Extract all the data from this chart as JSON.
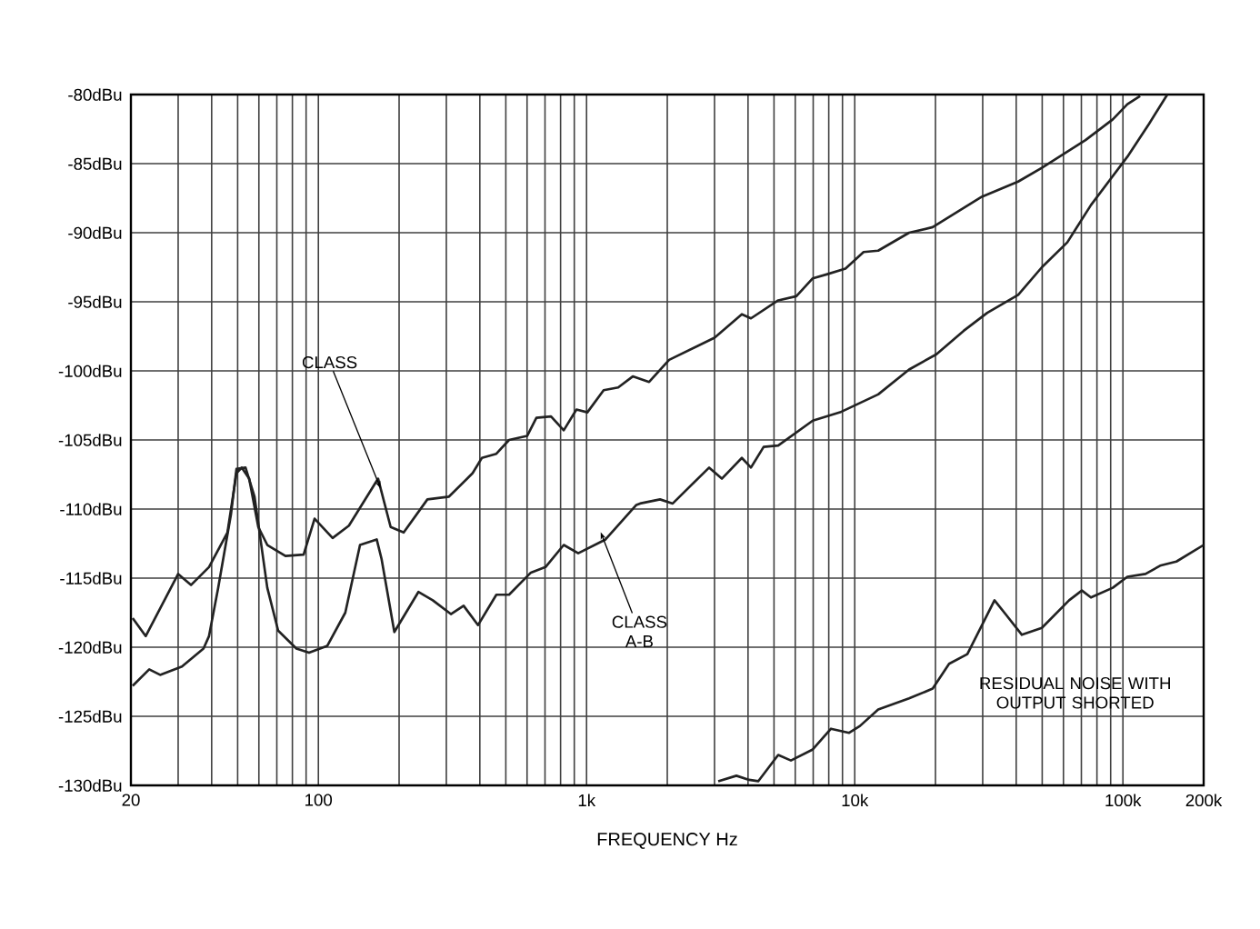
{
  "chart_data": {
    "type": "line",
    "xlabel": "FREQUENCY Hz",
    "log": "x",
    "grid": true,
    "xlim": [
      20,
      200000
    ],
    "ylim": [
      -130,
      -80
    ],
    "xticks": [
      20,
      {
        "value": 30,
        "label": null
      },
      {
        "value": 40,
        "label": null
      },
      {
        "value": 50,
        "label": null
      },
      {
        "value": 60,
        "label": null
      },
      {
        "value": 70,
        "label": null
      },
      {
        "value": 80,
        "label": null
      },
      {
        "value": 90,
        "label": null
      },
      100,
      {
        "value": 200,
        "label": null
      },
      {
        "value": 300,
        "label": null
      },
      {
        "value": 400,
        "label": null
      },
      {
        "value": 500,
        "label": null
      },
      {
        "value": 600,
        "label": null
      },
      {
        "value": 700,
        "label": null
      },
      {
        "value": 800,
        "label": null
      },
      {
        "value": 900,
        "label": null
      },
      {
        "value": 1000,
        "label": "1k"
      },
      {
        "value": 2000,
        "label": null
      },
      {
        "value": 3000,
        "label": null
      },
      {
        "value": 4000,
        "label": null
      },
      {
        "value": 5000,
        "label": null
      },
      {
        "value": 6000,
        "label": null
      },
      {
        "value": 7000,
        "label": null
      },
      {
        "value": 8000,
        "label": null
      },
      {
        "value": 9000,
        "label": null
      },
      {
        "value": 10000,
        "label": "10k"
      },
      {
        "value": 20000,
        "label": null
      },
      {
        "value": 30000,
        "label": null
      },
      {
        "value": 40000,
        "label": null
      },
      {
        "value": 50000,
        "label": null
      },
      {
        "value": 60000,
        "label": null
      },
      {
        "value": 70000,
        "label": null
      },
      {
        "value": 80000,
        "label": null
      },
      {
        "value": 90000,
        "label": null
      },
      {
        "value": 100000,
        "label": "100k"
      },
      {
        "value": 200000,
        "label": "200k"
      }
    ],
    "yticks": [
      {
        "value": -130,
        "label": "-130dBu"
      },
      {
        "value": -125,
        "label": "-125dBu"
      },
      {
        "value": -120,
        "label": "-120dBu"
      },
      {
        "value": -115,
        "label": "-115dBu"
      },
      {
        "value": -110,
        "label": "-110dBu"
      },
      {
        "value": -105,
        "label": "-105dBu"
      },
      {
        "value": -100,
        "label": "-100dBu"
      },
      {
        "value": -95,
        "label": "-95dBu"
      },
      {
        "value": -90,
        "label": "-90dBu"
      },
      {
        "value": -85,
        "label": "-85dBu"
      },
      {
        "value": -80,
        "label": "-80dBu"
      }
    ],
    "series": [
      {
        "color": "#222222",
        "x": [
          20.3,
          22.7,
          30.0,
          33.5,
          39.1,
          45.8,
          49.5,
          51.8,
          55.2,
          59.7,
          64.5,
          75.4,
          88.1,
          96.8,
          113,
          130,
          167,
          186,
          208,
          255,
          307,
          376,
          407,
          461,
          514,
          601,
          650,
          737,
          822,
          917,
          1007,
          1158,
          1312,
          1487,
          1711,
          2032,
          3002,
          3793,
          4102,
          5183,
          6057,
          6974,
          7904,
          9236,
          10790,
          12230,
          15950,
          19530,
          29780,
          40690,
          49860,
          72530,
          91640,
          103900,
          115900
        ],
        "values": [
          -117.9,
          -119.2,
          -114.7,
          -115.5,
          -114.2,
          -111.7,
          -107.4,
          -107,
          -107.8,
          -111.3,
          -112.6,
          -113.4,
          -113.3,
          -110.7,
          -112.1,
          -111.2,
          -107.8,
          -111.3,
          -111.7,
          -109.3,
          -109.1,
          -107.4,
          -106.3,
          -106,
          -105,
          -104.7,
          -103.4,
          -103.3,
          -104.3,
          -102.8,
          -103,
          -101.4,
          -101.2,
          -100.4,
          -100.8,
          -99.2,
          -97.6,
          -95.9,
          -96.2,
          -94.9,
          -94.6,
          -93.3,
          -93,
          -92.6,
          -91.4,
          -91.3,
          -90,
          -89.6,
          -87.4,
          -86.3,
          -85.3,
          -83.3,
          -81.8,
          -80.7,
          -80.1
        ]
      },
      {
        "color": "#222222",
        "x": [
          20.3,
          23.4,
          25.7,
          31.0,
          37.3,
          39.1,
          42.3,
          47.2,
          49.5,
          53.5,
          57.8,
          64.5,
          70.8,
          82.8,
          92.3,
          108,
          126,
          143,
          165,
          172,
          192,
          236,
          267,
          312,
          348,
          394,
          461,
          514,
          620,
          703,
          822,
          931,
          1177,
          1534,
          1583,
          1880,
          2095,
          2865,
          3195,
          3793,
          4102,
          4574,
          5183,
          6974,
          8815,
          12230,
          15950,
          20160,
          25480,
          31200,
          40690,
          49860,
          62020,
          75990,
          91640,
          103900,
          125300,
          146400
        ],
        "values": [
          -122.8,
          -121.6,
          -122,
          -121.4,
          -120.1,
          -119.2,
          -115.7,
          -110.4,
          -107.1,
          -107,
          -109.1,
          -115.7,
          -118.8,
          -120.1,
          -120.4,
          -119.9,
          -117.5,
          -112.6,
          -112.2,
          -113.6,
          -118.9,
          -116,
          -116.6,
          -117.6,
          -117,
          -118.4,
          -116.2,
          -116.2,
          -114.6,
          -114.2,
          -112.6,
          -113.2,
          -112.2,
          -109.7,
          -109.6,
          -109.3,
          -109.6,
          -107,
          -107.8,
          -106.3,
          -107,
          -105.5,
          -105.4,
          -103.6,
          -103,
          -101.7,
          -99.9,
          -98.8,
          -97.1,
          -95.8,
          -94.5,
          -92.5,
          -90.7,
          -88,
          -85.9,
          -84.5,
          -82.1,
          -80
        ]
      },
      {
        "color": "#222222",
        "x": [
          3097,
          3620,
          4038,
          4365,
          5183,
          5781,
          6974,
          8154,
          9530,
          10460,
          12230,
          15950,
          19530,
          22480,
          26290,
          28420,
          33200,
          36480,
          41990,
          49860,
          63000,
          70300,
          75990,
          91640,
          103900,
          121400,
          137600,
          158300,
          200000
        ],
        "values": [
          -129.7,
          -129.3,
          -129.6,
          -129.7,
          -127.8,
          -128.2,
          -127.4,
          -125.9,
          -126.2,
          -125.7,
          -124.5,
          -123.7,
          -123,
          -121.2,
          -120.5,
          -119.2,
          -116.6,
          -117.6,
          -119.1,
          -118.6,
          -116.6,
          -115.9,
          -116.4,
          -115.7,
          -114.9,
          -114.7,
          -114.1,
          -113.8,
          -112.6
        ]
      }
    ],
    "annotations": [
      {
        "text": "CLASS",
        "x": 167,
        "y": -107.8
      },
      {
        "text": "CLASS A-B",
        "x": 1177,
        "y": -112.2
      },
      {
        "text": "RESIDUAL NOISE WITH OUTPUT SHORTED",
        "x": 41990,
        "y": -119.1
      }
    ]
  }
}
